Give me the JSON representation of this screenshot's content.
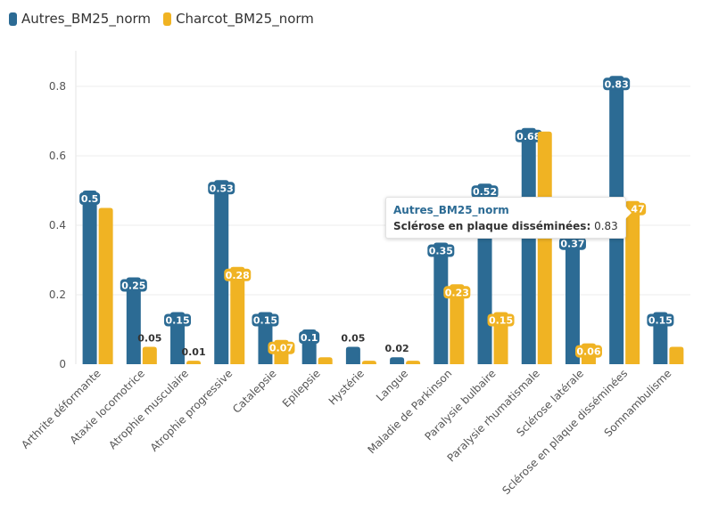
{
  "colors": {
    "autres": "#2c6b94",
    "charcot": "#f0b323",
    "axis": "#555555",
    "grid": "#eeeeee"
  },
  "legend": [
    {
      "name": "Autres_BM25_norm",
      "color": "#2c6b94"
    },
    {
      "name": "Charcot_BM25_norm",
      "color": "#f0b323"
    }
  ],
  "tooltip": {
    "series": "Autres_BM25_norm",
    "category": "Sclérose en plaque disséminées:",
    "value": "0.83"
  },
  "chart_data": {
    "type": "bar",
    "categories": [
      "Arthrite déformante",
      "Ataxie locomotrice",
      "Atrophie musculaire",
      "Atrophie progressive",
      "Catalepsie",
      "Epilepsie",
      "Hystérie",
      "Langue",
      "Maladie de Parkinson",
      "Paralysie bulbaire",
      "Paralysie rhumatismale",
      "Sclérose latérale",
      "Sclérose en plaque disséminées",
      "Somnambulisme"
    ],
    "series": [
      {
        "name": "Autres_BM25_norm",
        "color": "#2c6b94",
        "values": [
          0.5,
          0.25,
          0.15,
          0.53,
          0.15,
          0.1,
          0.05,
          0.02,
          0.35,
          0.52,
          0.68,
          0.37,
          0.83,
          0.15
        ],
        "labels": [
          "0.5",
          "0.25",
          "0.15",
          "0.53",
          "0.15",
          "0.1",
          "0.05",
          "0.02",
          "0.35",
          "0.52",
          "0.68",
          "0.37",
          "0.83",
          "0.15"
        ]
      },
      {
        "name": "Charcot_BM25_norm",
        "color": "#f0b323",
        "values": [
          0.45,
          0.05,
          0.01,
          0.28,
          0.07,
          0.02,
          0.01,
          0.01,
          0.23,
          0.15,
          0.67,
          0.06,
          0.47,
          0.05
        ],
        "labels": [
          "",
          "0.05",
          "0.01",
          "0.28",
          "0.07",
          "",
          "",
          "",
          "0.23",
          "0.15",
          "",
          "0.06",
          "0.47",
          ""
        ]
      }
    ],
    "yticks": [
      "0",
      "0.2",
      "0.4",
      "0.6",
      "0.8"
    ],
    "ylim": [
      0,
      0.8
    ],
    "grid": true,
    "legend_position": "top-left"
  }
}
